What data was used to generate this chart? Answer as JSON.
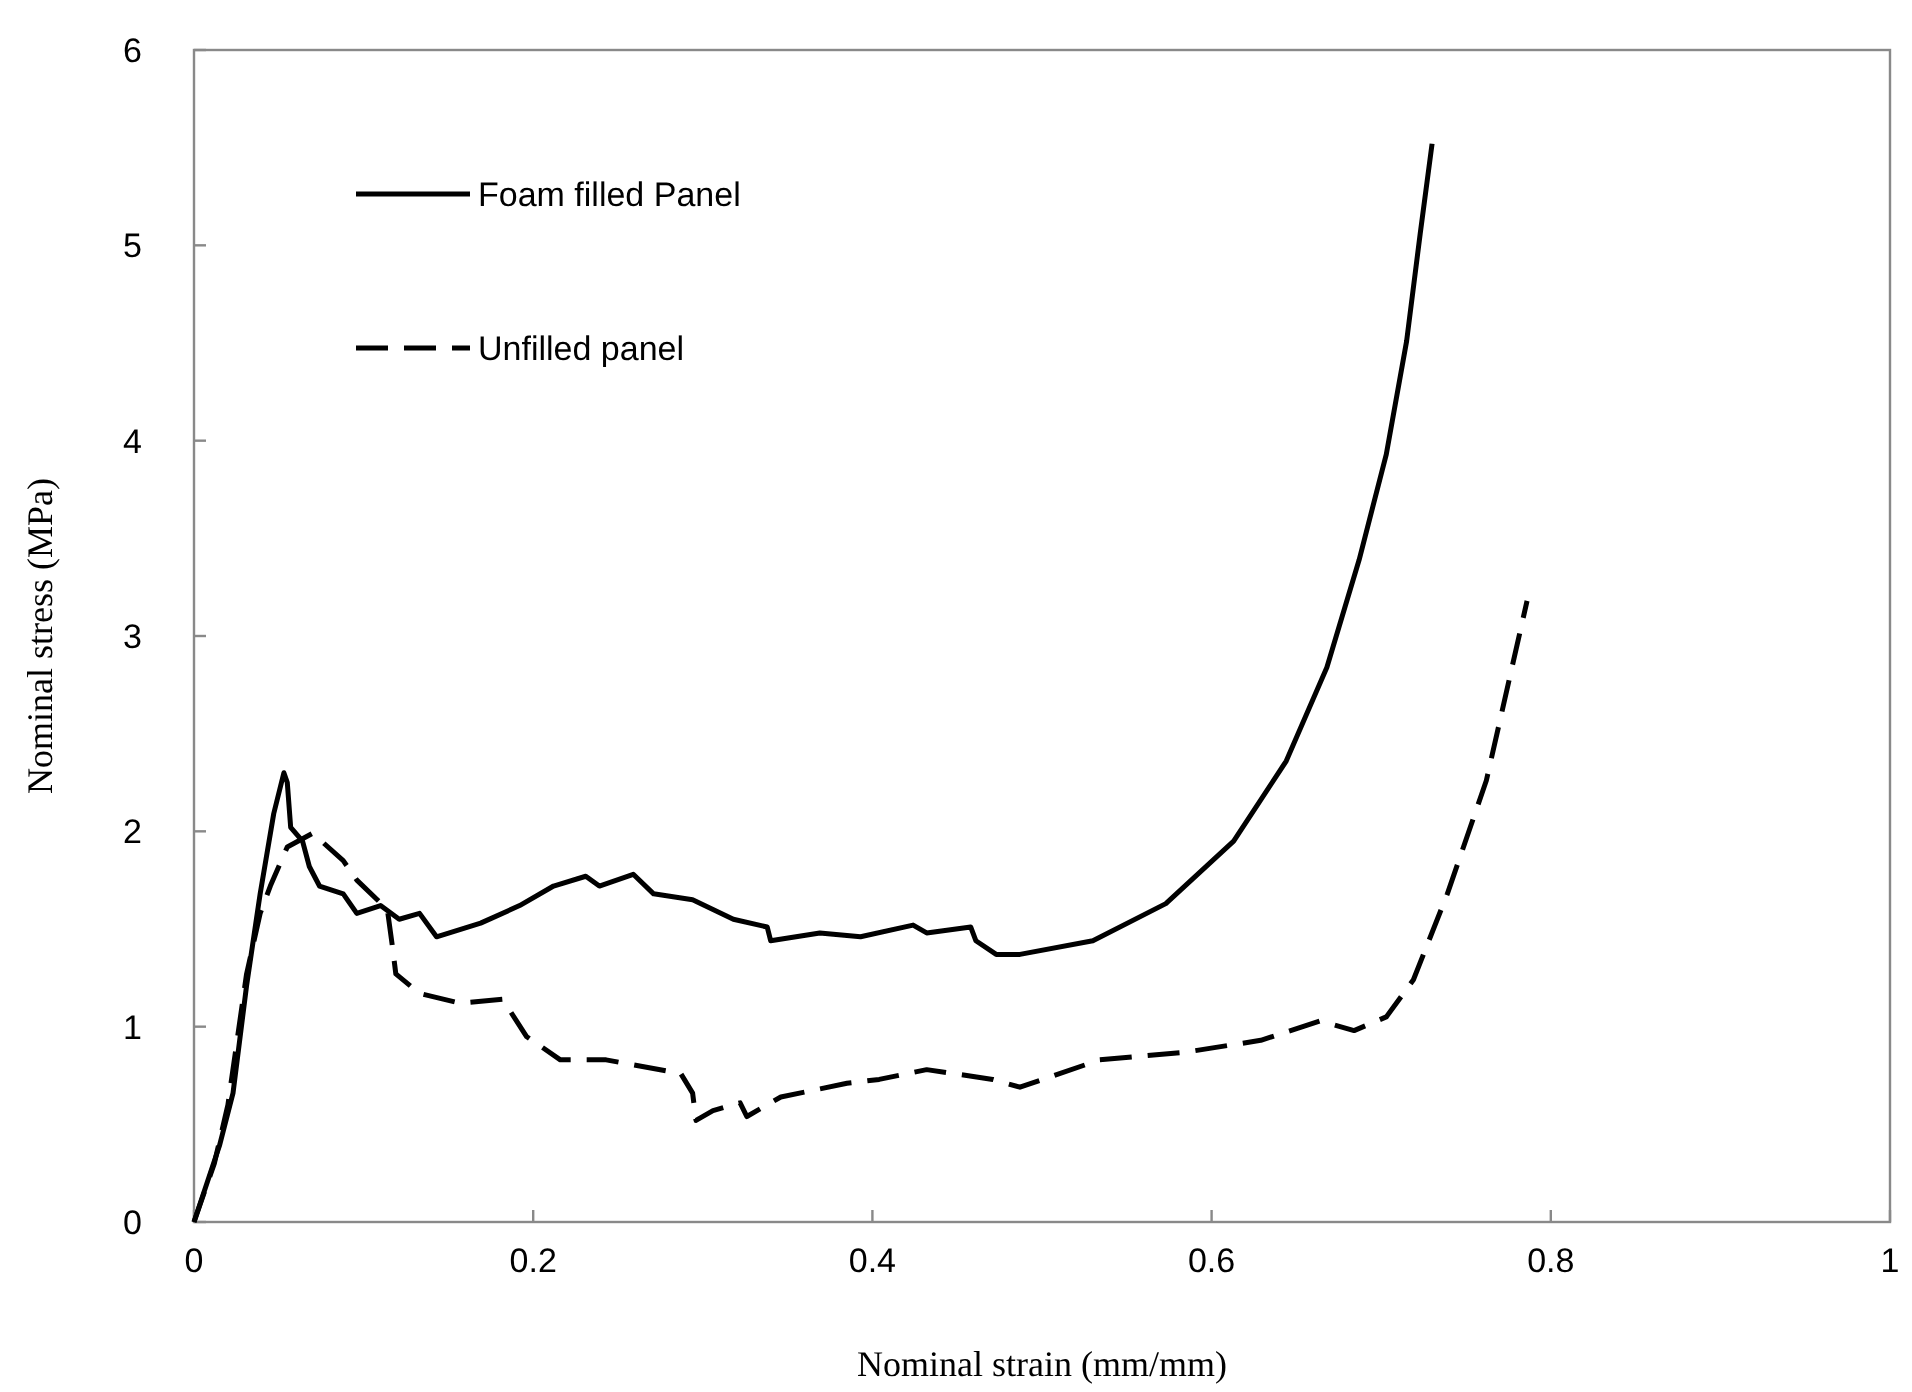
{
  "chart_data": {
    "type": "line",
    "xlabel": "Nominal strain (mm/mm)",
    "ylabel": "Nominal stress (MPa)",
    "xlim": [
      0,
      1
    ],
    "xticks": [
      0,
      0.2,
      0.4,
      0.6,
      0.8,
      1
    ],
    "ylim": [
      0,
      6
    ],
    "yticks": [
      0,
      1,
      2,
      3,
      4,
      5,
      6
    ],
    "grid": false,
    "legend": "top left",
    "series": [
      {
        "name": "Foam filled Panel",
        "color": "#000000",
        "line_style": "solid",
        "x": [
          0,
          0.015,
          0.023,
          0.031,
          0.039,
          0.047,
          0.053,
          0.055,
          0.057,
          0.064,
          0.068,
          0.074,
          0.088,
          0.096,
          0.11,
          0.121,
          0.133,
          0.143,
          0.169,
          0.192,
          0.212,
          0.231,
          0.239,
          0.259,
          0.271,
          0.294,
          0.318,
          0.338,
          0.34,
          0.369,
          0.393,
          0.424,
          0.432,
          0.458,
          0.461,
          0.473,
          0.487,
          0.53,
          0.573,
          0.613,
          0.644,
          0.668,
          0.687,
          0.703,
          0.715,
          0.723,
          0.73
        ],
        "values": [
          0,
          0.39,
          0.66,
          1.21,
          1.68,
          2.09,
          2.3,
          2.25,
          2.02,
          1.95,
          1.82,
          1.72,
          1.68,
          1.58,
          1.62,
          1.55,
          1.58,
          1.46,
          1.53,
          1.62,
          1.72,
          1.77,
          1.72,
          1.78,
          1.68,
          1.65,
          1.55,
          1.51,
          1.44,
          1.48,
          1.46,
          1.52,
          1.48,
          1.51,
          1.44,
          1.37,
          1.37,
          1.44,
          1.63,
          1.95,
          2.36,
          2.84,
          3.39,
          3.93,
          4.51,
          5.06,
          5.52
        ]
      },
      {
        "name": "Unfilled panel",
        "color": "#000000",
        "line_style": "dashed",
        "x": [
          0,
          0.012,
          0.02,
          0.031,
          0.039,
          0.045,
          0.055,
          0.07,
          0.088,
          0.096,
          0.114,
          0.117,
          0.119,
          0.133,
          0.157,
          0.182,
          0.196,
          0.216,
          0.243,
          0.287,
          0.294,
          0.296,
          0.306,
          0.322,
          0.326,
          0.346,
          0.385,
          0.404,
          0.432,
          0.471,
          0.487,
          0.534,
          0.585,
          0.629,
          0.664,
          0.684,
          0.703,
          0.719,
          0.739,
          0.762,
          0.786
        ],
        "values": [
          0,
          0.3,
          0.6,
          1.27,
          1.58,
          1.72,
          1.92,
          1.99,
          1.85,
          1.75,
          1.6,
          1.41,
          1.27,
          1.17,
          1.12,
          1.14,
          0.95,
          0.83,
          0.83,
          0.76,
          0.66,
          0.52,
          0.57,
          0.61,
          0.54,
          0.64,
          0.71,
          0.73,
          0.78,
          0.73,
          0.69,
          0.83,
          0.87,
          0.93,
          1.03,
          0.98,
          1.05,
          1.24,
          1.68,
          2.26,
          3.18
        ]
      }
    ]
  }
}
